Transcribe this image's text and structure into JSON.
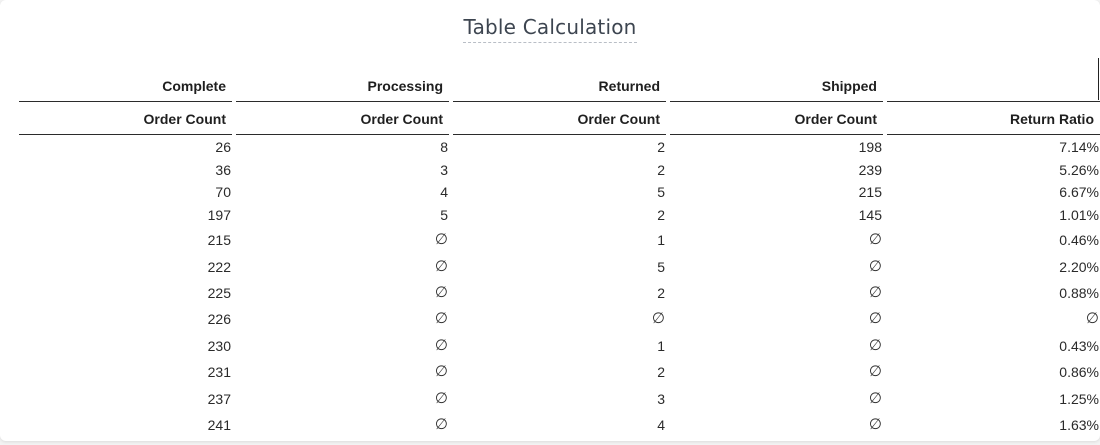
{
  "title": "Table Calculation",
  "pivot_headers": [
    "Complete",
    "Processing",
    "Returned",
    "Shipped",
    ""
  ],
  "measure_headers": [
    "Order Count",
    "Order Count",
    "Order Count",
    "Order Count",
    "Return Ratio"
  ],
  "null_symbol": "∅",
  "rows": [
    [
      "26",
      "8",
      "2",
      "198",
      "7.14%"
    ],
    [
      "36",
      "3",
      "2",
      "239",
      "5.26%"
    ],
    [
      "70",
      "4",
      "5",
      "215",
      "6.67%"
    ],
    [
      "197",
      "5",
      "2",
      "145",
      "1.01%"
    ],
    [
      "215",
      "∅",
      "1",
      "∅",
      "0.46%"
    ],
    [
      "222",
      "∅",
      "5",
      "∅",
      "2.20%"
    ],
    [
      "225",
      "∅",
      "2",
      "∅",
      "0.88%"
    ],
    [
      "226",
      "∅",
      "∅",
      "∅",
      "∅"
    ],
    [
      "230",
      "∅",
      "1",
      "∅",
      "0.43%"
    ],
    [
      "231",
      "∅",
      "2",
      "∅",
      "0.86%"
    ],
    [
      "237",
      "∅",
      "3",
      "∅",
      "1.25%"
    ],
    [
      "241",
      "∅",
      "4",
      "∅",
      "1.63%"
    ]
  ]
}
